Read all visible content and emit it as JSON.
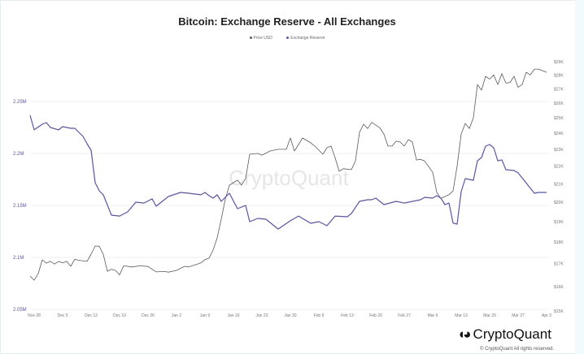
{
  "chart_data": {
    "type": "line",
    "title": "Bitcoin: Exchange Reserve - All Exchanges",
    "legend": [
      "Price USD",
      "Exchange Reserve"
    ],
    "legend_placement": "top-center",
    "watermark": "CryptoQuant",
    "x_ticks": [
      "Nov 28",
      "Dec 5",
      "Dec 12",
      "Dec 19",
      "Dec 26",
      "Jan 2",
      "Jan 9",
      "Jan 16",
      "Jan 23",
      "Jan 30",
      "Feb 6",
      "Feb 13",
      "Feb 20",
      "Feb 27",
      "Mar 6",
      "Mar 13",
      "Mar 20",
      "Mar 27",
      "Apr 3"
    ],
    "x_range": [
      "2022-11-27",
      "2023-04-03"
    ],
    "left_axis": {
      "ticks": [
        "2.25M",
        "2.2M",
        "2.15M",
        "2.1M",
        "2.05M"
      ],
      "values": [
        2.25,
        2.2,
        2.15,
        2.1,
        2.05
      ],
      "range": [
        2.05,
        2.25
      ],
      "unit": "M"
    },
    "right_axis": {
      "ticks": [
        "$29K",
        "$28K",
        "$27K",
        "$26K",
        "$25K",
        "$24K",
        "$23K",
        "$22K",
        "$21K",
        "$20K",
        "$19K",
        "$18K",
        "$17K",
        "$16K",
        "$15K"
      ],
      "values": [
        29000,
        28000,
        27000,
        26000,
        25000,
        24000,
        23000,
        22000,
        21000,
        20000,
        19000,
        18000,
        17000,
        16000,
        15000
      ],
      "range": [
        15000,
        29000
      ],
      "scale": "log"
    },
    "grid": true,
    "colors": {
      "price": "#5a5a5a",
      "reserve": "#5552c4"
    },
    "series": [
      {
        "name": "Price USD",
        "axis": "right",
        "points": [
          [
            "2022-11-27",
            16450
          ],
          [
            "2022-11-28",
            16270
          ],
          [
            "2022-11-29",
            16560
          ],
          [
            "2022-11-30",
            17170
          ],
          [
            "2022-12-01",
            17020
          ],
          [
            "2022-12-02",
            17100
          ],
          [
            "2022-12-03",
            16980
          ],
          [
            "2022-12-04",
            17100
          ],
          [
            "2022-12-05",
            17030
          ],
          [
            "2022-12-06",
            17100
          ],
          [
            "2022-12-07",
            16880
          ],
          [
            "2022-12-08",
            17200
          ],
          [
            "2022-12-09",
            17150
          ],
          [
            "2022-12-11",
            17100
          ],
          [
            "2022-12-12",
            17430
          ],
          [
            "2022-12-13",
            17810
          ],
          [
            "2022-12-14",
            17800
          ],
          [
            "2022-12-15",
            17420
          ],
          [
            "2022-12-16",
            16660
          ],
          [
            "2022-12-17",
            16750
          ],
          [
            "2022-12-18",
            16700
          ],
          [
            "2022-12-19",
            16500
          ],
          [
            "2022-12-20",
            16900
          ],
          [
            "2022-12-22",
            16850
          ],
          [
            "2022-12-24",
            16900
          ],
          [
            "2022-12-26",
            16870
          ],
          [
            "2022-12-27",
            16750
          ],
          [
            "2022-12-28",
            16630
          ],
          [
            "2022-12-30",
            16650
          ],
          [
            "2022-12-31",
            16620
          ],
          [
            "2023-01-02",
            16700
          ],
          [
            "2023-01-04",
            16880
          ],
          [
            "2023-01-05",
            16850
          ],
          [
            "2023-01-07",
            16970
          ],
          [
            "2023-01-08",
            17030
          ],
          [
            "2023-01-09",
            17180
          ],
          [
            "2023-01-10",
            17250
          ],
          [
            "2023-01-11",
            17620
          ],
          [
            "2023-01-12",
            18200
          ],
          [
            "2023-01-13",
            19120
          ],
          [
            "2023-01-14",
            20170
          ],
          [
            "2023-01-15",
            20920
          ],
          [
            "2023-01-16",
            21060
          ],
          [
            "2023-01-17",
            21200
          ],
          [
            "2023-01-18",
            20920
          ],
          [
            "2023-01-19",
            21300
          ],
          [
            "2023-01-20",
            22700
          ],
          [
            "2023-01-22",
            22750
          ],
          [
            "2023-01-23",
            22650
          ],
          [
            "2023-01-25",
            22900
          ],
          [
            "2023-01-27",
            23000
          ],
          [
            "2023-01-29",
            23000
          ],
          [
            "2023-01-30",
            23700
          ],
          [
            "2023-01-31",
            22900
          ],
          [
            "2023-02-02",
            23700
          ],
          [
            "2023-02-04",
            23400
          ],
          [
            "2023-02-05",
            23200
          ],
          [
            "2023-02-07",
            22700
          ],
          [
            "2023-02-08",
            23100
          ],
          [
            "2023-02-09",
            23200
          ],
          [
            "2023-02-10",
            22500
          ],
          [
            "2023-02-11",
            21700
          ],
          [
            "2023-02-12",
            21850
          ],
          [
            "2023-02-14",
            21800
          ],
          [
            "2023-02-15",
            22300
          ],
          [
            "2023-02-16",
            24060
          ],
          [
            "2023-02-17",
            24580
          ],
          [
            "2023-02-18",
            24300
          ],
          [
            "2023-02-19",
            24700
          ],
          [
            "2023-02-21",
            24350
          ],
          [
            "2023-02-22",
            23950
          ],
          [
            "2023-02-23",
            23200
          ],
          [
            "2023-02-24",
            23200
          ],
          [
            "2023-02-25",
            23500
          ],
          [
            "2023-02-26",
            23450
          ],
          [
            "2023-02-27",
            23200
          ],
          [
            "2023-02-28",
            23600
          ],
          [
            "2023-03-01",
            23450
          ],
          [
            "2023-03-02",
            22360
          ],
          [
            "2023-03-03",
            22400
          ],
          [
            "2023-03-04",
            22300
          ],
          [
            "2023-03-06",
            21650
          ],
          [
            "2023-03-07",
            20520
          ],
          [
            "2023-03-08",
            20200
          ],
          [
            "2023-03-10",
            20400
          ],
          [
            "2023-03-11",
            20600
          ],
          [
            "2023-03-12",
            22000
          ],
          [
            "2023-03-13",
            23950
          ],
          [
            "2023-03-14",
            24630
          ],
          [
            "2023-03-15",
            24300
          ],
          [
            "2023-03-16",
            25000
          ],
          [
            "2023-03-17",
            27300
          ],
          [
            "2023-03-18",
            26900
          ],
          [
            "2023-03-19",
            27900
          ],
          [
            "2023-03-20",
            27700
          ],
          [
            "2023-03-21",
            28000
          ],
          [
            "2023-03-22",
            27300
          ],
          [
            "2023-03-23",
            28100
          ],
          [
            "2023-03-24",
            27400
          ],
          [
            "2023-03-25",
            27450
          ],
          [
            "2023-03-26",
            27900
          ],
          [
            "2023-03-27",
            27100
          ],
          [
            "2023-03-28",
            27300
          ],
          [
            "2023-03-29",
            28200
          ],
          [
            "2023-03-30",
            28000
          ],
          [
            "2023-03-31",
            28440
          ],
          [
            "2023-04-01",
            28440
          ],
          [
            "2023-04-03",
            28200
          ]
        ]
      },
      {
        "name": "Exchange Reserve",
        "axis": "left",
        "points": [
          [
            "2022-11-27",
            2.2367
          ],
          [
            "2022-11-28",
            2.2227
          ],
          [
            "2022-11-30",
            2.2281
          ],
          [
            "2022-12-01",
            2.2297
          ],
          [
            "2022-12-02",
            2.225
          ],
          [
            "2022-12-04",
            2.2227
          ],
          [
            "2022-12-05",
            2.2258
          ],
          [
            "2022-12-07",
            2.2242
          ],
          [
            "2022-12-08",
            2.2242
          ],
          [
            "2022-12-10",
            2.2164
          ],
          [
            "2022-12-11",
            2.2094
          ],
          [
            "2022-12-12",
            2.2031
          ],
          [
            "2022-12-13",
            2.1719
          ],
          [
            "2022-12-14",
            2.1641
          ],
          [
            "2022-12-15",
            2.1602
          ],
          [
            "2022-12-17",
            2.1406
          ],
          [
            "2022-12-19",
            2.1398
          ],
          [
            "2022-12-21",
            2.1438
          ],
          [
            "2022-12-23",
            2.1531
          ],
          [
            "2022-12-25",
            2.1523
          ],
          [
            "2022-12-27",
            2.1563
          ],
          [
            "2022-12-28",
            2.1492
          ],
          [
            "2022-12-31",
            2.1586
          ],
          [
            "2023-01-03",
            2.1625
          ],
          [
            "2023-01-05",
            2.1617
          ],
          [
            "2023-01-08",
            2.1602
          ],
          [
            "2023-01-09",
            2.1625
          ],
          [
            "2023-01-10",
            2.1594
          ],
          [
            "2023-01-11",
            2.157
          ],
          [
            "2023-01-12",
            2.1602
          ],
          [
            "2023-01-13",
            2.1539
          ],
          [
            "2023-01-15",
            2.1617
          ],
          [
            "2023-01-17",
            2.1469
          ],
          [
            "2023-01-19",
            2.15
          ],
          [
            "2023-01-20",
            2.1344
          ],
          [
            "2023-01-22",
            2.1375
          ],
          [
            "2023-01-24",
            2.1367
          ],
          [
            "2023-01-27",
            2.1273
          ],
          [
            "2023-01-30",
            2.1352
          ],
          [
            "2023-02-01",
            2.1398
          ],
          [
            "2023-02-04",
            2.1328
          ],
          [
            "2023-02-06",
            2.1344
          ],
          [
            "2023-02-08",
            2.1305
          ],
          [
            "2023-02-10",
            2.1398
          ],
          [
            "2023-02-13",
            2.1391
          ],
          [
            "2023-02-14",
            2.1422
          ],
          [
            "2023-02-16",
            2.1539
          ],
          [
            "2023-02-18",
            2.1555
          ],
          [
            "2023-02-19",
            2.1555
          ],
          [
            "2023-02-20",
            2.157
          ],
          [
            "2023-02-22",
            2.1508
          ],
          [
            "2023-02-25",
            2.1539
          ],
          [
            "2023-02-27",
            2.1523
          ],
          [
            "2023-03-03",
            2.1555
          ],
          [
            "2023-03-04",
            2.1578
          ],
          [
            "2023-03-06",
            2.157
          ],
          [
            "2023-03-07",
            2.1594
          ],
          [
            "2023-03-08",
            2.157
          ],
          [
            "2023-03-09",
            2.1508
          ],
          [
            "2023-03-10",
            2.1523
          ],
          [
            "2023-03-11",
            2.133
          ],
          [
            "2023-03-12",
            2.132
          ],
          [
            "2023-03-13",
            2.1633
          ],
          [
            "2023-03-14",
            2.1758
          ],
          [
            "2023-03-16",
            2.1742
          ],
          [
            "2023-03-17",
            2.193
          ],
          [
            "2023-03-18",
            2.1961
          ],
          [
            "2023-03-19",
            2.207
          ],
          [
            "2023-03-20",
            2.2086
          ],
          [
            "2023-03-21",
            2.2055
          ],
          [
            "2023-03-22",
            2.193
          ],
          [
            "2023-03-23",
            2.1938
          ],
          [
            "2023-03-24",
            2.1844
          ],
          [
            "2023-03-26",
            2.1836
          ],
          [
            "2023-03-27",
            2.1813
          ],
          [
            "2023-03-31",
            2.1617
          ],
          [
            "2023-04-01",
            2.1625
          ],
          [
            "2023-04-03",
            2.1625
          ]
        ]
      }
    ]
  },
  "footer": {
    "logo_text": "CryptoQuant",
    "copyright": "© CryptoQuant All rights reserved."
  }
}
